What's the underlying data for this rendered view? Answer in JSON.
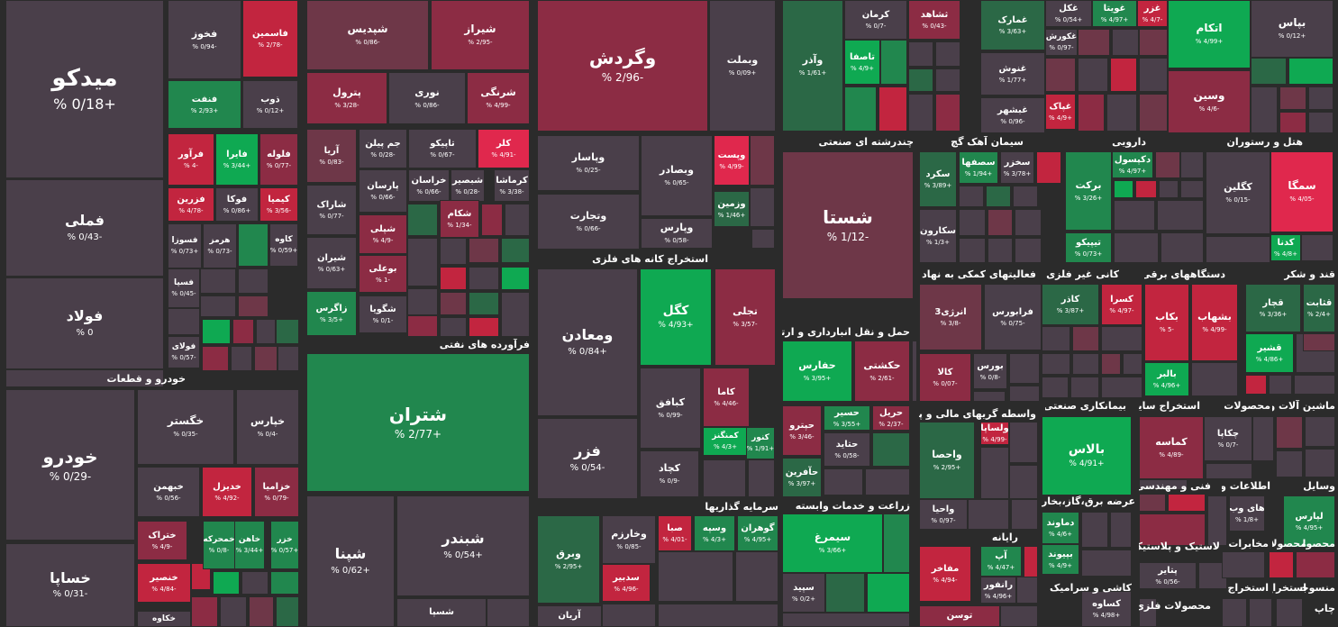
{
  "colors": {
    "neutral": "#4a3f4a",
    "r1": "#6e3748",
    "r2": "#8c2c44",
    "r3": "#c2253f",
    "r4": "#e0284d",
    "g1": "#2b6846",
    "g2": "#21874e",
    "g3": "#0fa952"
  },
  "sectors": [
    {
      "label": "خودرو و قطعات"
    },
    {
      "label": "فرآورده های نفتی"
    },
    {
      "label": "استخراج کانه های فلزی"
    },
    {
      "label": "سرمایه گذاریها"
    },
    {
      "label": "چندرشته ای صنعتی"
    },
    {
      "label": "سیمان آهک گچ"
    },
    {
      "label": "دارویی"
    },
    {
      "label": "هتل و رستوران"
    },
    {
      "label": "فعالیتهای کمکی به نهاد های"
    },
    {
      "label": "کانی غیر فلزی"
    },
    {
      "label": "دستگاههای برقی"
    },
    {
      "label": "قند و شکر"
    },
    {
      "label": "حمل و نقل انبارداری و ارتباطات"
    },
    {
      "label": "واسطه گریهای مالی و پولی"
    },
    {
      "label": "بیمانکاری صنعتی"
    },
    {
      "label": "استخراج سایر"
    },
    {
      "label": "محصولات"
    },
    {
      "label": "ماشین آلات و"
    },
    {
      "label": "زراعت و خدمات وابسته"
    },
    {
      "label": "عرضه برق،گاز،بخار و آب"
    },
    {
      "label": "فنی و مهندسی"
    },
    {
      "label": "اطلاعات و"
    },
    {
      "label": "وسایل"
    },
    {
      "label": "رایانه"
    },
    {
      "label": "لاستیک و پلاستیک"
    },
    {
      "label": "مخابرات"
    },
    {
      "label": "محصولا"
    },
    {
      "label": "محصولا"
    },
    {
      "label": "کاشی و سرامیک"
    },
    {
      "label": "استخراج"
    },
    {
      "label": "استخراج"
    },
    {
      "label": "منسوجا"
    },
    {
      "label": "محصولات فلزی"
    },
    {
      "label": "چاپ"
    }
  ],
  "tiles": [
    {
      "name": "میدکو",
      "value": "+0/18 %"
    },
    {
      "name": "فملی",
      "value": "-0/43 %"
    },
    {
      "name": "فولاد",
      "value": "0 %"
    },
    {
      "name": "فخوز",
      "value": "-0/94 %"
    },
    {
      "name": "فاسمین",
      "value": "-2/78 %"
    },
    {
      "name": "فنفت",
      "value": "+2/93 %"
    },
    {
      "name": "ذوب",
      "value": "+0/12 %"
    },
    {
      "name": "فرآور",
      "value": "-4 %"
    },
    {
      "name": "فایرا",
      "value": "+3/44 %"
    },
    {
      "name": "فلوله",
      "value": "-0/77 %"
    },
    {
      "name": "فزرین",
      "value": "-4/78 %"
    },
    {
      "name": "فوکا",
      "value": "+0/86 %"
    },
    {
      "name": "کیمیا",
      "value": "-3/56 %"
    },
    {
      "name": "فسوزا",
      "value": "+0/73 %"
    },
    {
      "name": "هرمز",
      "value": "-0/73 %"
    },
    {
      "name": "کاوه",
      "value": "+0/59 %"
    },
    {
      "name": "فسپا",
      "value": "-0/45 %"
    },
    {
      "name": "فولای",
      "value": "-0/57 %"
    },
    {
      "name": "خودرو",
      "value": "-0/29 %"
    },
    {
      "name": "خگستر",
      "value": "-0/35 %"
    },
    {
      "name": "خپارس",
      "value": "-0/4 %"
    },
    {
      "name": "خساپا",
      "value": "-0/31 %"
    },
    {
      "name": "خبهمن",
      "value": "-0/56 %"
    },
    {
      "name": "خدیزل",
      "value": "-4/92 %"
    },
    {
      "name": "خزامیا",
      "value": "-0/79 %"
    },
    {
      "name": "ختراک",
      "value": "-4/9 %"
    },
    {
      "name": "خمحرکه",
      "value": "-0/8 %"
    },
    {
      "name": "خاهن",
      "value": "+3/44 %"
    },
    {
      "name": "خزر",
      "value": "+0/57 %"
    },
    {
      "name": "خنصیر",
      "value": "-4/84 %"
    },
    {
      "name": "خکاوه",
      "value": ""
    },
    {
      "name": "شپدیس",
      "value": "-0/86 %"
    },
    {
      "name": "شیراز",
      "value": "-2/95 %"
    },
    {
      "name": "پترول",
      "value": "-3/28 %"
    },
    {
      "name": "نوری",
      "value": "-0/86 %"
    },
    {
      "name": "شرنگی",
      "value": "-4/99 %"
    },
    {
      "name": "آریا",
      "value": "-0/83 %"
    },
    {
      "name": "جم پیلن",
      "value": "-0/28 %"
    },
    {
      "name": "تاپیکو",
      "value": "-0/67 %"
    },
    {
      "name": "کلر",
      "value": "-4/91 %"
    },
    {
      "name": "شاراک",
      "value": "-0/77 %"
    },
    {
      "name": "پارسان",
      "value": "-0/66 %"
    },
    {
      "name": "خراسان",
      "value": "-0/66 %"
    },
    {
      "name": "شبصیر",
      "value": "-0/28 %"
    },
    {
      "name": "کرماشا",
      "value": "-3/38 %"
    },
    {
      "name": "شکام",
      "value": "-1/34 %"
    },
    {
      "name": "شپلی",
      "value": "-4/9 %"
    },
    {
      "name": "شیران",
      "value": "+0/63 %"
    },
    {
      "name": "بوعلی",
      "value": "-1 %"
    },
    {
      "name": "زاگرس",
      "value": "+3/5 %"
    },
    {
      "name": "شگویا",
      "value": "-0/1 %"
    },
    {
      "name": "شتران",
      "value": "+2/77 %"
    },
    {
      "name": "شپنا",
      "value": "+0/62 %"
    },
    {
      "name": "شبندر",
      "value": "+0/54 %"
    },
    {
      "name": "شسپا",
      "value": ""
    },
    {
      "name": "وگردش",
      "value": "-2/96 %"
    },
    {
      "name": "وبملت",
      "value": "+0/09 %"
    },
    {
      "name": "وپاسار",
      "value": "-0/25 %"
    },
    {
      "name": "وبصادر",
      "value": "-0/65 %"
    },
    {
      "name": "وپست",
      "value": "-4/99 %"
    },
    {
      "name": "وتجارت",
      "value": "-0/66 %"
    },
    {
      "name": "وزمین",
      "value": "+1/46 %"
    },
    {
      "name": "وپارس",
      "value": "-0/58 %"
    },
    {
      "name": "ومعادن",
      "value": "+0/84 %"
    },
    {
      "name": "کگل",
      "value": "+4/93 %"
    },
    {
      "name": "تجلی",
      "value": "-3/57 %"
    },
    {
      "name": "فزر",
      "value": "-0/54 %"
    },
    {
      "name": "کبافق",
      "value": "-0/99 %"
    },
    {
      "name": "کاما",
      "value": "-4/46 %"
    },
    {
      "name": "کمنگنز",
      "value": "+4/3 %"
    },
    {
      "name": "کنور",
      "value": "+1/91 %"
    },
    {
      "name": "کچاد",
      "value": "-0/9 %"
    },
    {
      "name": "وبرق",
      "value": "+2/95 %"
    },
    {
      "name": "وخارزم",
      "value": "-0/85 %"
    },
    {
      "name": "صبا",
      "value": "-4/01 %"
    },
    {
      "name": "وسپه",
      "value": "+4/3 %"
    },
    {
      "name": "گوهران",
      "value": "+4/95 %"
    },
    {
      "name": "سدبیر",
      "value": "-4/96 %"
    },
    {
      "name": "آریان",
      "value": ""
    },
    {
      "name": "وآذر",
      "value": "+1/61 %"
    },
    {
      "name": "کرمان",
      "value": "-0/7 %"
    },
    {
      "name": "ثشاهد",
      "value": "-0/43 %"
    },
    {
      "name": "تاصفا",
      "value": "+4/9 %"
    },
    {
      "name": "شستا",
      "value": "-1/12 %"
    },
    {
      "name": "غمارک",
      "value": "+3/63 %"
    },
    {
      "name": "غنوش",
      "value": "+1/77 %"
    },
    {
      "name": "غبشهر",
      "value": "-0/96 %"
    },
    {
      "name": "غکل",
      "value": "+0/54 %"
    },
    {
      "name": "غویتا",
      "value": "+4/97 %"
    },
    {
      "name": "غزر",
      "value": "-4/7 %"
    },
    {
      "name": "غکورش",
      "value": "-0/97 %"
    },
    {
      "name": "غپاک",
      "value": "+4/9 %"
    },
    {
      "name": "اتکام",
      "value": "+4/99 %"
    },
    {
      "name": "وسین",
      "value": "-4/6 %"
    },
    {
      "name": "بپاس",
      "value": "+0/12 %"
    },
    {
      "name": "سکرد",
      "value": "+3/89 %"
    },
    {
      "name": "سصفها",
      "value": "+1/94 %"
    },
    {
      "name": "سخزر",
      "value": "+3/78 %"
    },
    {
      "name": "سکارون",
      "value": "+1/3 %"
    },
    {
      "name": "برکت",
      "value": "+3/26 %"
    },
    {
      "name": "دکپسول",
      "value": "+4/97 %"
    },
    {
      "name": "تیپیکو",
      "value": "+0/73 %"
    },
    {
      "name": "سمگا",
      "value": "-4/05 %"
    },
    {
      "name": "کگلین",
      "value": "-0/15 %"
    },
    {
      "name": "کدنا",
      "value": "+4/8 %"
    },
    {
      "name": "انرژی3",
      "value": "-3/8 %"
    },
    {
      "name": "فرابورس",
      "value": "-0/75 %"
    },
    {
      "name": "کالا",
      "value": "-0/07 %"
    },
    {
      "name": "بورس",
      "value": "-0/8 %"
    },
    {
      "name": "کاذر",
      "value": "+3/87 %"
    },
    {
      "name": "کسرا",
      "value": "-4/97 %"
    },
    {
      "name": "بکاب",
      "value": "-5 %"
    },
    {
      "name": "بشهاب",
      "value": "-4/99 %"
    },
    {
      "name": "بالبر",
      "value": "+4/96 %"
    },
    {
      "name": "قچار",
      "value": "+3/36 %"
    },
    {
      "name": "قثابت",
      "value": "+2/4 %"
    },
    {
      "name": "قشیر",
      "value": "+4/86 %"
    },
    {
      "name": "حفارس",
      "value": "+3/95 %"
    },
    {
      "name": "حکشتی",
      "value": "-2/61 %"
    },
    {
      "name": "حپترو",
      "value": "-3/46 %"
    },
    {
      "name": "حسیر",
      "value": "+3/55 %"
    },
    {
      "name": "حریل",
      "value": "-2/37 %"
    },
    {
      "name": "حتاید",
      "value": "-0/58 %"
    },
    {
      "name": "حآفرین",
      "value": "+3/97 %"
    },
    {
      "name": "ولساپا",
      "value": "-4/99 %"
    },
    {
      "name": "واحصا",
      "value": "+2/95 %"
    },
    {
      "name": "واحیا",
      "value": "-0/97 %"
    },
    {
      "name": "بالاس",
      "value": "+4/91 %"
    },
    {
      "name": "کماسه",
      "value": "-4/89 %"
    },
    {
      "name": "چکاپا",
      "value": "-0/7 %"
    },
    {
      "name": "سیمرغ",
      "value": "+3/66 %"
    },
    {
      "name": "سپید",
      "value": "+0/2 %"
    },
    {
      "name": "دماوند",
      "value": "+4/6 %"
    },
    {
      "name": "بپیوند",
      "value": "+4/9 %"
    },
    {
      "name": "مفاخر",
      "value": "-4/94 %"
    },
    {
      "name": "آپ",
      "value": "+4/47 %"
    },
    {
      "name": "رانفور",
      "value": "+4/96 %"
    },
    {
      "name": "توسن",
      "value": ""
    },
    {
      "name": "های وب",
      "value": "+1/8 %"
    },
    {
      "name": "لپارس",
      "value": "+4/95 %"
    },
    {
      "name": "پتایر",
      "value": "-0/56 %"
    },
    {
      "name": "کساوه",
      "value": "+4/98 %"
    }
  ]
}
